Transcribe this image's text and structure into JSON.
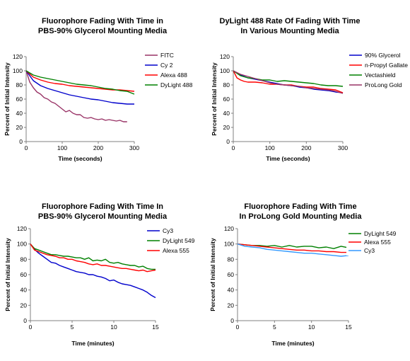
{
  "chart_data": [
    {
      "type": "line",
      "title": [
        "Fluorophore Fading With Time in",
        "PBS-90% Glycerol Mounting Media"
      ],
      "xlabel": "Time (seconds)",
      "ylabel": "Percent of Initial Intensity",
      "xlim": [
        0,
        300
      ],
      "ylim": [
        0,
        120
      ],
      "xticks": [
        "0",
        "100",
        "200",
        "300"
      ],
      "yticks": [
        "0",
        "20",
        "40",
        "60",
        "80",
        "100",
        "120"
      ],
      "legend_position": "right",
      "series": [
        {
          "name": "FITC",
          "color": "#993366",
          "x": [
            0,
            10,
            20,
            30,
            40,
            50,
            60,
            70,
            80,
            90,
            100,
            110,
            120,
            130,
            140,
            150,
            160,
            170,
            180,
            190,
            200,
            210,
            220,
            230,
            240,
            250,
            260,
            270,
            280
          ],
          "y": [
            100,
            84,
            76,
            70,
            67,
            62,
            60,
            56,
            54,
            50,
            46,
            42,
            44,
            40,
            38,
            38,
            34,
            33,
            34,
            32,
            31,
            32,
            30,
            31,
            30,
            29,
            30,
            28,
            28
          ]
        },
        {
          "name": "Cy 2",
          "color": "#0000CC",
          "x": [
            0,
            20,
            40,
            60,
            80,
            100,
            120,
            140,
            160,
            180,
            200,
            220,
            240,
            260,
            280,
            300
          ],
          "y": [
            100,
            86,
            79,
            75,
            72,
            69,
            66,
            64,
            62,
            60,
            59,
            57,
            55,
            54,
            53,
            53
          ]
        },
        {
          "name": "Alexa 488",
          "color": "#FF0000",
          "x": [
            0,
            20,
            40,
            60,
            80,
            100,
            120,
            140,
            160,
            180,
            200,
            220,
            240,
            260,
            280,
            300
          ],
          "y": [
            100,
            91,
            87,
            84,
            82,
            81,
            79,
            78,
            77,
            76,
            75,
            74,
            73,
            73,
            72,
            71
          ]
        },
        {
          "name": "DyLight 488",
          "color": "#008000",
          "x": [
            0,
            20,
            40,
            60,
            80,
            100,
            120,
            140,
            160,
            180,
            200,
            220,
            240,
            260,
            280,
            300
          ],
          "y": [
            100,
            94,
            91,
            89,
            87,
            85,
            83,
            81,
            80,
            79,
            77,
            75,
            74,
            72,
            71,
            67
          ]
        }
      ]
    },
    {
      "type": "line",
      "title": [
        "DyLight 488 Rate Of Fading With Time",
        "In Various Mounting Media"
      ],
      "xlabel": "Time (seconds)",
      "ylabel": "Percent of Initial Intensity",
      "xlim": [
        0,
        300
      ],
      "ylim": [
        0,
        120
      ],
      "xticks": [
        "0",
        "100",
        "200",
        "300"
      ],
      "yticks": [
        "0",
        "20",
        "40",
        "60",
        "80",
        "100",
        "120"
      ],
      "legend_position": "right",
      "series": [
        {
          "name": "90% Glycerol",
          "color": "#0000CC",
          "x": [
            0,
            20,
            40,
            60,
            80,
            100,
            120,
            140,
            160,
            180,
            200,
            220,
            240,
            260,
            280,
            300
          ],
          "y": [
            100,
            94,
            90,
            88,
            86,
            84,
            82,
            80,
            79,
            77,
            76,
            74,
            73,
            72,
            70,
            69
          ]
        },
        {
          "name": "n-Propyl Gallate",
          "color": "#FF0000",
          "x": [
            0,
            10,
            20,
            30,
            40,
            60,
            80,
            100,
            120,
            140,
            160,
            180,
            200,
            220,
            240,
            260,
            280,
            300
          ],
          "y": [
            100,
            90,
            87,
            85,
            84,
            84,
            83,
            81,
            81,
            80,
            80,
            78,
            77,
            77,
            75,
            74,
            73,
            69
          ]
        },
        {
          "name": "Vectashield",
          "color": "#008000",
          "x": [
            0,
            20,
            40,
            60,
            80,
            100,
            120,
            140,
            160,
            180,
            200,
            220,
            240,
            260,
            280,
            300
          ],
          "y": [
            100,
            93,
            90,
            89,
            87,
            87,
            85,
            86,
            85,
            84,
            83,
            82,
            80,
            79,
            79,
            78
          ]
        },
        {
          "name": "ProLong Gold",
          "color": "#993366",
          "x": [
            0,
            20,
            40,
            60,
            80,
            100,
            120,
            140,
            160,
            180,
            200,
            220,
            240,
            260,
            280,
            300
          ],
          "y": [
            100,
            95,
            92,
            89,
            86,
            83,
            81,
            80,
            79,
            78,
            76,
            75,
            74,
            73,
            71,
            68
          ]
        }
      ]
    },
    {
      "type": "line",
      "title": [
        "Fluorophore Fading With Time In",
        "PBS-90% Glycerol Mounting Media"
      ],
      "xlabel": "Time (minutes)",
      "ylabel": "Percent of Initial Intensity",
      "xlim": [
        0,
        15
      ],
      "ylim": [
        0,
        120
      ],
      "xticks": [
        "0",
        "5",
        "10",
        "15"
      ],
      "yticks": [
        "0",
        "20",
        "40",
        "60",
        "80",
        "100",
        "120"
      ],
      "legend_position": "top-right",
      "series": [
        {
          "name": "Cy3",
          "color": "#0000CC",
          "x": [
            0,
            0.5,
            1,
            1.5,
            2,
            2.5,
            3,
            3.5,
            4,
            4.5,
            5,
            5.5,
            6,
            6.5,
            7,
            7.5,
            8,
            8.5,
            9,
            9.5,
            10,
            10.5,
            11,
            11.5,
            12,
            12.5,
            13,
            13.5,
            14,
            14.5,
            15
          ],
          "y": [
            100,
            93,
            88,
            84,
            80,
            76,
            75,
            72,
            70,
            68,
            66,
            64,
            63,
            62,
            60,
            60,
            58,
            57,
            55,
            52,
            53,
            50,
            48,
            47,
            46,
            44,
            42,
            40,
            37,
            33,
            30
          ]
        },
        {
          "name": "DyLight 549",
          "color": "#008000",
          "x": [
            0,
            0.5,
            1,
            1.5,
            2,
            2.5,
            3,
            3.5,
            4,
            4.5,
            5,
            5.5,
            6,
            6.5,
            7,
            7.5,
            8,
            8.5,
            9,
            9.5,
            10,
            10.5,
            11,
            11.5,
            12,
            12.5,
            13,
            13.5,
            14,
            14.5,
            15
          ],
          "y": [
            100,
            94,
            92,
            90,
            88,
            86,
            86,
            85,
            84,
            84,
            83,
            82,
            82,
            80,
            82,
            78,
            79,
            78,
            80,
            76,
            75,
            76,
            74,
            73,
            72,
            72,
            70,
            71,
            68,
            67,
            67
          ]
        },
        {
          "name": "Alexa 555",
          "color": "#FF0000",
          "x": [
            0,
            0.5,
            1,
            1.5,
            2,
            2.5,
            3,
            3.5,
            4,
            4.5,
            5,
            5.5,
            6,
            6.5,
            7,
            7.5,
            8,
            8.5,
            9,
            9.5,
            10,
            10.5,
            11,
            11.5,
            12,
            12.5,
            13,
            13.5,
            14,
            14.5,
            15
          ],
          "y": [
            100,
            92,
            90,
            88,
            86,
            85,
            84,
            82,
            82,
            80,
            80,
            78,
            77,
            76,
            74,
            73,
            74,
            72,
            72,
            71,
            70,
            69,
            68,
            68,
            67,
            66,
            65,
            66,
            64,
            65,
            66
          ]
        }
      ]
    },
    {
      "type": "line",
      "title": [
        "Fluorophore Fading With Time",
        "In ProLong Gold Mounting Media"
      ],
      "xlabel": "Time (minutes)",
      "ylabel": "Percent of Initial Intensity",
      "xlim": [
        0,
        15
      ],
      "ylim": [
        0,
        120
      ],
      "xticks": [
        "0",
        "5",
        "10",
        "15"
      ],
      "yticks": [
        "0",
        "20",
        "40",
        "60",
        "80",
        "100",
        "120"
      ],
      "legend_position": "top-right",
      "series": [
        {
          "name": "DyLight 549",
          "color": "#008000",
          "x": [
            0,
            1,
            2,
            3,
            4,
            5,
            6,
            7,
            8,
            9,
            10,
            11,
            12,
            13,
            14,
            15
          ],
          "y": [
            100,
            99,
            98,
            98,
            97,
            98,
            96,
            98,
            96,
            97,
            97,
            95,
            96,
            94,
            97,
            95
          ]
        },
        {
          "name": "Alexa 555",
          "color": "#FF0000",
          "x": [
            0,
            1,
            2,
            3,
            4,
            5,
            6,
            7,
            8,
            9,
            10,
            11,
            12,
            13,
            14,
            15
          ],
          "y": [
            100,
            99,
            98,
            97,
            96,
            95,
            94,
            93,
            92,
            92,
            91,
            91,
            90,
            90,
            89,
            89
          ]
        },
        {
          "name": "Cy3",
          "color": "#3399FF",
          "x": [
            0,
            1,
            2,
            3,
            4,
            5,
            6,
            7,
            8,
            9,
            10,
            11,
            12,
            13,
            14,
            15
          ],
          "y": [
            100,
            97,
            96,
            95,
            93,
            92,
            91,
            90,
            89,
            88,
            88,
            87,
            86,
            85,
            84,
            85
          ]
        }
      ]
    }
  ]
}
